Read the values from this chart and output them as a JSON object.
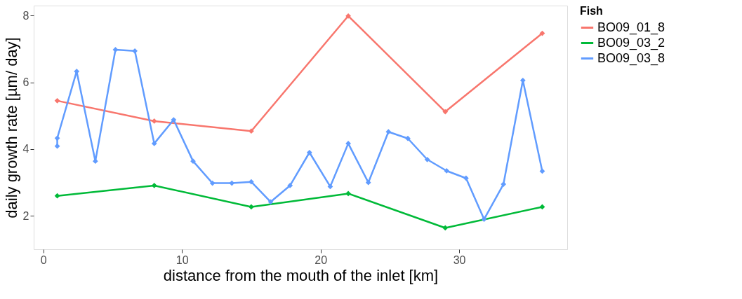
{
  "chart_data": {
    "type": "line",
    "xlabel": "distance from the mouth of the inlet [km]",
    "ylabel": "daily growth rate [µm/ day]",
    "legend_title": "Fish",
    "legend": "right",
    "grid": false,
    "marker": "diamond",
    "line_style": "solid",
    "xlim": [
      -0.7,
      37.8
    ],
    "xticks": [
      0,
      10,
      20,
      30
    ],
    "ylim": [
      1.0,
      8.3
    ],
    "yticks": [
      2,
      4,
      6,
      8
    ],
    "series": [
      {
        "name": "BO09_01_8",
        "color": "#f8766d",
        "x": [
          1,
          8,
          15,
          22,
          29,
          36
        ],
        "values": [
          5.45,
          4.84,
          4.54,
          7.99,
          5.12,
          7.47
        ]
      },
      {
        "name": "BO09_03_2",
        "color": "#00ba38",
        "x": [
          1,
          8,
          15,
          22,
          29,
          36
        ],
        "values": [
          2.6,
          2.91,
          2.27,
          2.67,
          1.64,
          2.27
        ]
      },
      {
        "name": "BO09_03_8",
        "color": "#619cff",
        "x": [
          1,
          1,
          2.4,
          3.75,
          5.2,
          6.6,
          8,
          9.4,
          10.8,
          12.2,
          13.6,
          15,
          16.4,
          17.8,
          19.2,
          20.7,
          22,
          23.45,
          24.9,
          26.3,
          27.7,
          29.1,
          30.5,
          31.8,
          33.2,
          34.6,
          36
        ],
        "values": [
          4.09,
          4.33,
          6.33,
          3.64,
          6.98,
          6.94,
          4.17,
          4.88,
          3.64,
          2.98,
          2.98,
          3.02,
          2.42,
          2.91,
          3.9,
          2.88,
          4.17,
          3.0,
          4.52,
          4.32,
          3.69,
          3.35,
          3.13,
          1.9,
          2.95,
          6.06,
          3.34
        ]
      }
    ]
  }
}
